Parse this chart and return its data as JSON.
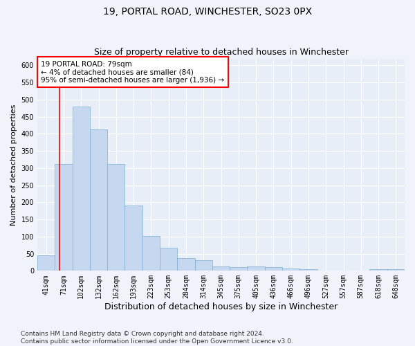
{
  "title_line1": "19, PORTAL ROAD, WINCHESTER, SO23 0PX",
  "title_line2": "Size of property relative to detached houses in Winchester",
  "xlabel": "Distribution of detached houses by size in Winchester",
  "ylabel": "Number of detached properties",
  "bar_labels": [
    "41sqm",
    "71sqm",
    "102sqm",
    "132sqm",
    "162sqm",
    "193sqm",
    "223sqm",
    "253sqm",
    "284sqm",
    "314sqm",
    "345sqm",
    "375sqm",
    "405sqm",
    "436sqm",
    "466sqm",
    "496sqm",
    "527sqm",
    "557sqm",
    "587sqm",
    "618sqm",
    "648sqm"
  ],
  "bar_values": [
    45,
    312,
    480,
    413,
    312,
    190,
    102,
    68,
    37,
    30,
    13,
    10,
    12,
    10,
    6,
    4,
    1,
    0,
    0,
    4,
    4
  ],
  "bar_color": "#c5d8f0",
  "bar_edge_color": "#7bafd4",
  "annotation_box_text": "19 PORTAL ROAD: 79sqm\n← 4% of detached houses are smaller (84)\n95% of semi-detached houses are larger (1,936) →",
  "annotation_box_color": "white",
  "annotation_box_edge_color": "red",
  "vline_color": "red",
  "ylim": [
    0,
    620
  ],
  "yticks": [
    0,
    50,
    100,
    150,
    200,
    250,
    300,
    350,
    400,
    450,
    500,
    550,
    600
  ],
  "footer_text": "Contains HM Land Registry data © Crown copyright and database right 2024.\nContains public sector information licensed under the Open Government Licence v3.0.",
  "bg_color": "#f0f4fa",
  "plot_bg_color": "#e8eef8",
  "grid_color": "white",
  "title1_fontsize": 10,
  "title2_fontsize": 9,
  "xlabel_fontsize": 9,
  "ylabel_fontsize": 8,
  "tick_fontsize": 7,
  "footer_fontsize": 6.5
}
